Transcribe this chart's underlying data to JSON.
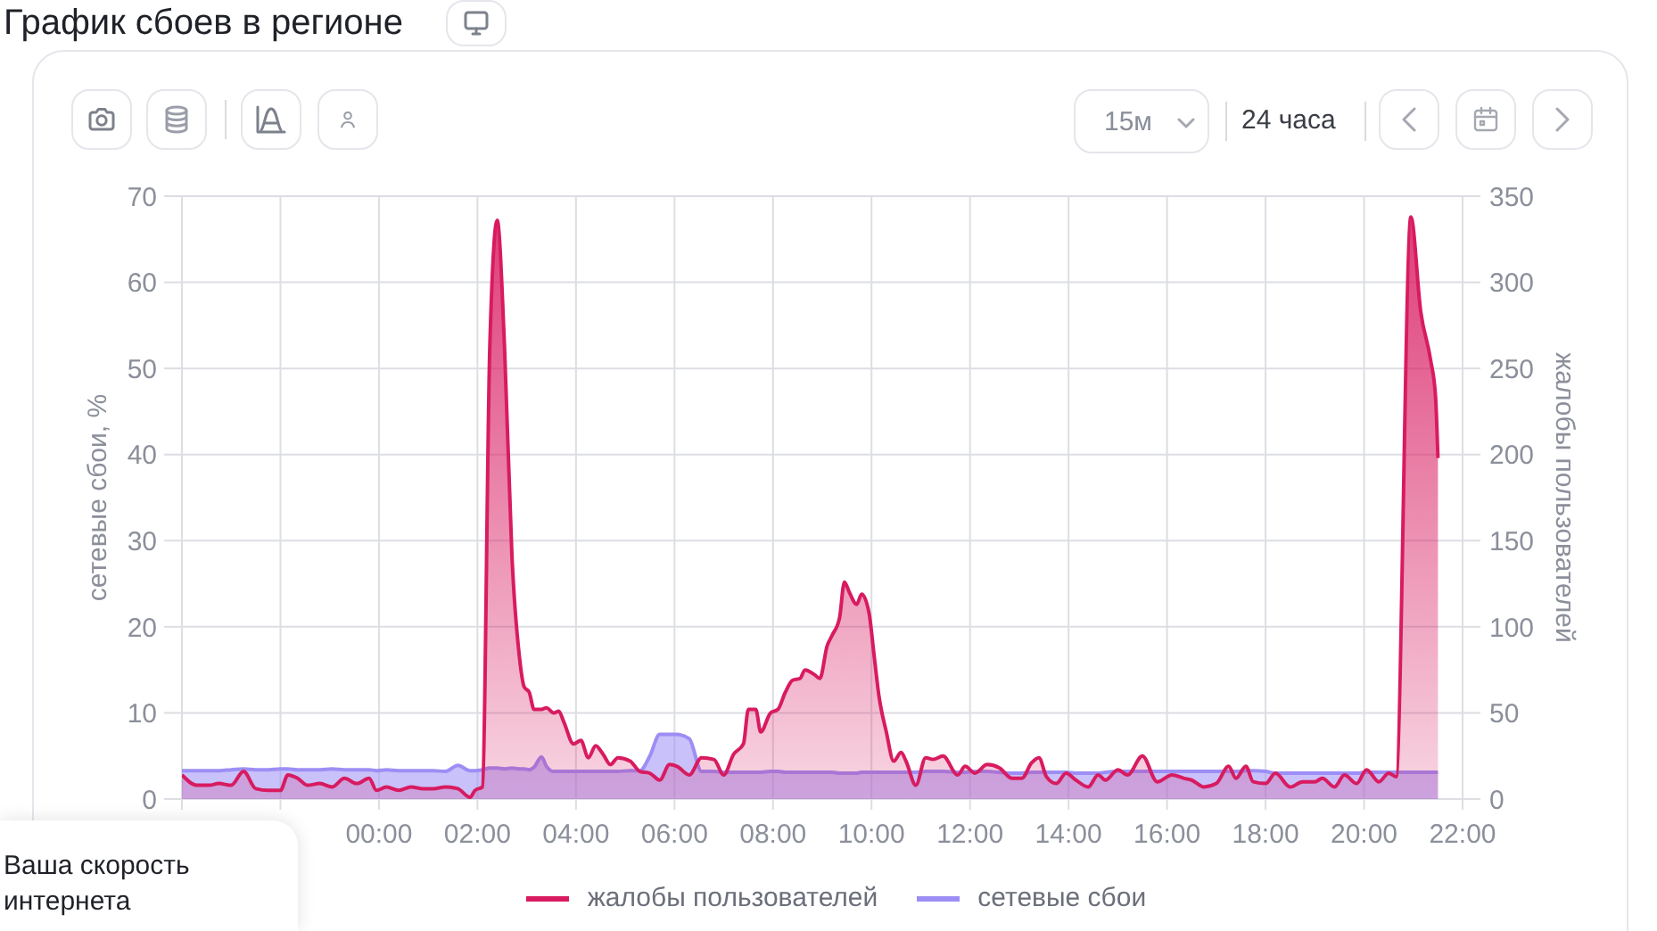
{
  "chart_data": {
    "type": "area",
    "title": "График сбоев в регионе",
    "ylabel": "сетевые сбои, %",
    "y2label": "жалобы пользователей",
    "annotations": [
      "15м",
      "24 часа",
      "Ваша скорость интернета"
    ],
    "xlim": [
      -4,
      22
    ],
    "xticks": [
      {
        "value": -4,
        "label": null
      },
      {
        "value": -2,
        "label": null
      },
      {
        "value": 0,
        "label": "00:00"
      },
      {
        "value": 2,
        "label": "02:00"
      },
      {
        "value": 4,
        "label": "04:00"
      },
      {
        "value": 6,
        "label": "06:00"
      },
      {
        "value": 8,
        "label": "08:00"
      },
      {
        "value": 10,
        "label": "10:00"
      },
      {
        "value": 12,
        "label": "12:00"
      },
      {
        "value": 14,
        "label": "14:00"
      },
      {
        "value": 16,
        "label": "16:00"
      },
      {
        "value": 18,
        "label": "18:00"
      },
      {
        "value": 20,
        "label": "20:00"
      },
      {
        "value": 22,
        "label": "22:00"
      }
    ],
    "ylim": [
      0,
      70
    ],
    "yticks": [
      0,
      10,
      20,
      30,
      40,
      50,
      60,
      70
    ],
    "y2lim": [
      0,
      350
    ],
    "y2ticks": [
      0,
      50,
      100,
      150,
      200,
      250,
      300,
      350
    ],
    "grid": true,
    "legend": "bottom",
    "x": [
      -4.0,
      -3.7,
      -3.45,
      -3.25,
      -3.0,
      -2.75,
      -2.5,
      -2.25,
      -2.0,
      -1.85,
      -1.65,
      -1.45,
      -1.2,
      -0.95,
      -0.7,
      -0.45,
      -0.2,
      -0.05,
      0.15,
      0.4,
      0.65,
      0.9,
      1.1,
      1.35,
      1.6,
      1.85,
      1.95,
      2.1,
      2.25,
      2.4,
      2.55,
      2.7,
      2.85,
      2.95,
      3.05,
      3.15,
      3.3,
      3.4,
      3.55,
      3.65,
      3.75,
      3.95,
      4.1,
      4.25,
      4.4,
      4.55,
      4.7,
      4.85,
      5.1,
      5.3,
      5.5,
      5.7,
      5.9,
      6.05,
      6.3,
      6.55,
      6.8,
      7.0,
      7.2,
      7.4,
      7.5,
      7.65,
      7.75,
      7.95,
      8.1,
      8.25,
      8.4,
      8.55,
      8.65,
      8.85,
      8.95,
      9.1,
      9.2,
      9.35,
      9.45,
      9.55,
      9.7,
      9.8,
      9.95,
      10.05,
      10.15,
      10.3,
      10.45,
      10.6,
      10.7,
      10.9,
      11.1,
      11.25,
      11.45,
      11.75,
      11.9,
      12.1,
      12.35,
      12.6,
      12.85,
      13.05,
      13.25,
      13.4,
      13.55,
      13.75,
      13.95,
      14.15,
      14.4,
      14.6,
      14.75,
      15.0,
      15.2,
      15.5,
      15.8,
      16.1,
      16.35,
      16.5,
      16.75,
      17.0,
      17.25,
      17.4,
      17.6,
      17.75,
      18.0,
      18.2,
      18.5,
      18.75,
      19.0,
      19.15,
      19.4,
      19.6,
      19.85,
      20.05,
      20.3,
      20.5,
      20.65,
      20.95,
      21.15,
      21.35,
      21.45,
      21.5
    ],
    "series": [
      {
        "name": "жалобы пользователей",
        "color": "#d81b60",
        "axis": "y2",
        "values": [
          14,
          8,
          8,
          9,
          8,
          16,
          6,
          5,
          5,
          14,
          12,
          8,
          9,
          7,
          12,
          9,
          12,
          5,
          7,
          5,
          7,
          6,
          6,
          7,
          6,
          1,
          5,
          7,
          262,
          336,
          262,
          141,
          83,
          65,
          62,
          52,
          52,
          53,
          50,
          51,
          45,
          32,
          34,
          24,
          31,
          26,
          20,
          24,
          22,
          16,
          15,
          11,
          20,
          19,
          14,
          24,
          23,
          14,
          26,
          32,
          52,
          52,
          39,
          50,
          52,
          62,
          69,
          70,
          75,
          72,
          70,
          89,
          95,
          105,
          126,
          120,
          113,
          119,
          108,
          84,
          60,
          39,
          22,
          27,
          22,
          8,
          24,
          23,
          25,
          14,
          19,
          15,
          20,
          18,
          12,
          12,
          21,
          24,
          13,
          9,
          15,
          11,
          7,
          14,
          11,
          17,
          14,
          25,
          10,
          14,
          12,
          11,
          7,
          9,
          19,
          12,
          19,
          10,
          9,
          15,
          7,
          10,
          10,
          12,
          7,
          14,
          9,
          17,
          10,
          15,
          13,
          338,
          283,
          255,
          234,
          198
        ]
      },
      {
        "name": "сетевые сбои",
        "color": "#9d8ef5",
        "values": [
          3.3,
          3.3,
          3.3,
          3.3,
          3.4,
          3.5,
          3.4,
          3.4,
          3.5,
          3.5,
          3.4,
          3.4,
          3.4,
          3.5,
          3.4,
          3.4,
          3.4,
          3.3,
          3.4,
          3.3,
          3.3,
          3.3,
          3.3,
          3.2,
          3.9,
          3.3,
          3.3,
          3.4,
          3.6,
          3.6,
          3.5,
          3.6,
          3.5,
          3.5,
          3.4,
          3.7,
          4.9,
          3.8,
          3.2,
          3.2,
          3.2,
          3.2,
          3.2,
          3.2,
          3.2,
          3.2,
          3.2,
          3.2,
          3.3,
          3.3,
          5.0,
          7.5,
          7.5,
          7.5,
          7.0,
          3.2,
          3.2,
          3.1,
          3.1,
          3.1,
          3.1,
          3.1,
          3.1,
          3.2,
          3.2,
          3.1,
          3.1,
          3.1,
          3.1,
          3.1,
          3.1,
          3.1,
          3.1,
          3.0,
          3.0,
          3.0,
          3.0,
          3.1,
          3.1,
          3.1,
          3.1,
          3.1,
          3.1,
          3.1,
          3.1,
          3.1,
          3.2,
          3.2,
          3.2,
          3.1,
          3.1,
          3.2,
          3.2,
          3.1,
          3.0,
          3.0,
          3.1,
          3.1,
          3.1,
          3.1,
          3.1,
          3.0,
          3.0,
          3.0,
          3.1,
          3.2,
          3.2,
          3.2,
          3.2,
          3.2,
          3.2,
          3.2,
          3.2,
          3.2,
          3.2,
          3.2,
          3.3,
          3.3,
          3.2,
          3.0,
          3.0,
          3.0,
          3.0,
          3.0,
          3.0,
          3.0,
          3.0,
          3.1,
          3.1,
          3.1,
          3.1,
          3.1,
          3.1,
          3.1,
          3.1,
          3.1
        ]
      }
    ]
  }
}
